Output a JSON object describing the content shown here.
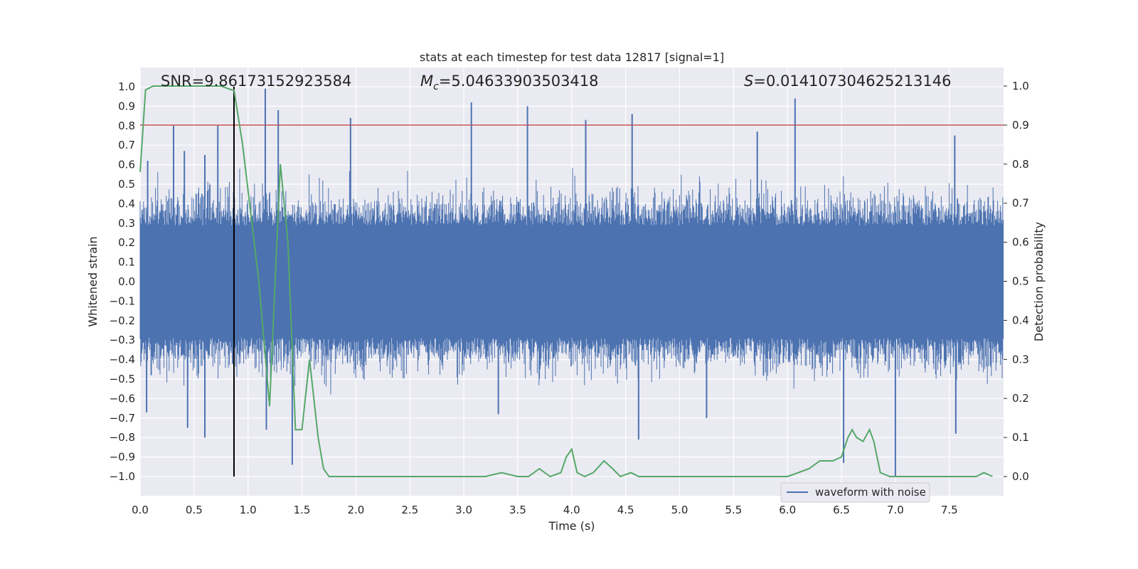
{
  "chart_data": {
    "type": "line",
    "title": "stats at each timestep for test data 12817 [signal=1]",
    "xlabel": "Time (s)",
    "ylabel": "Whitened strain",
    "y2label": "Detection probability",
    "xlim": [
      0.0,
      8.0
    ],
    "ylim": [
      -1.1,
      1.1
    ],
    "y2lim": [
      -0.05,
      1.05
    ],
    "xticks": [
      "0.0",
      "0.5",
      "1.0",
      "1.5",
      "2.0",
      "2.5",
      "3.0",
      "3.5",
      "4.0",
      "4.5",
      "5.0",
      "5.5",
      "6.0",
      "6.5",
      "7.0",
      "7.5"
    ],
    "yticks": [
      "1.0",
      "0.9",
      "0.8",
      "0.7",
      "0.6",
      "0.5",
      "0.4",
      "0.3",
      "0.2",
      "0.1",
      "0.0",
      "−0.1",
      "−0.2",
      "−0.3",
      "−0.4",
      "−0.5",
      "−0.6",
      "−0.7",
      "−0.8",
      "−0.9",
      "−1.0"
    ],
    "y2ticks": [
      "1.0",
      "0.9",
      "0.8",
      "0.7",
      "0.6",
      "0.5",
      "0.4",
      "0.3",
      "0.2",
      "0.1",
      "0.0"
    ],
    "grid": true,
    "legend": {
      "position": "lower-right",
      "entries": [
        {
          "label": "waveform with noise",
          "color": "#4c72b0"
        }
      ]
    },
    "annotations": {
      "snr": "SNR=9.86173152923584",
      "mc_symbol": "M",
      "mc_subscript": "c",
      "mc_value": "=5.04633903503418",
      "s_symbol": "S",
      "s_value": "=0.014107304625213146"
    },
    "series": [
      {
        "name": "waveform with noise",
        "color": "#4c72b0",
        "axis": "left",
        "style": "dense-noise",
        "envelope_typical": 0.4,
        "spikes": [
          {
            "x": 0.07,
            "y": 0.62
          },
          {
            "x": 0.31,
            "y": 0.8
          },
          {
            "x": 0.41,
            "y": 0.67
          },
          {
            "x": 0.6,
            "y": 0.65
          },
          {
            "x": 0.72,
            "y": 0.8
          },
          {
            "x": 1.16,
            "y": 0.99
          },
          {
            "x": 1.28,
            "y": 0.88
          },
          {
            "x": 1.95,
            "y": 0.84
          },
          {
            "x": 3.07,
            "y": 0.92
          },
          {
            "x": 3.59,
            "y": 0.9
          },
          {
            "x": 4.13,
            "y": 0.83
          },
          {
            "x": 4.56,
            "y": 0.86
          },
          {
            "x": 6.07,
            "y": 0.94
          },
          {
            "x": 5.72,
            "y": 0.77
          },
          {
            "x": 7.55,
            "y": 0.75
          },
          {
            "x": 0.06,
            "y": -0.67
          },
          {
            "x": 0.44,
            "y": -0.75
          },
          {
            "x": 0.6,
            "y": -0.8
          },
          {
            "x": 1.17,
            "y": -0.76
          },
          {
            "x": 1.41,
            "y": -0.94
          },
          {
            "x": 4.62,
            "y": -0.81
          },
          {
            "x": 6.52,
            "y": -0.93
          },
          {
            "x": 7.0,
            "y": -1.0
          },
          {
            "x": 7.56,
            "y": -0.78
          },
          {
            "x": 3.32,
            "y": -0.68
          },
          {
            "x": 5.25,
            "y": -0.7
          }
        ]
      },
      {
        "name": "",
        "color": "#55a868",
        "axis": "right",
        "x": [
          0.0,
          0.05,
          0.12,
          0.2,
          0.4,
          0.6,
          0.75,
          0.85,
          0.87,
          0.95,
          1.1,
          1.2,
          1.3,
          1.37,
          1.44,
          1.5,
          1.57,
          1.65,
          1.7,
          1.75,
          1.85,
          2.0,
          2.2,
          2.4,
          2.6,
          2.8,
          3.0,
          3.2,
          3.35,
          3.5,
          3.6,
          3.7,
          3.8,
          3.9,
          3.95,
          4.0,
          4.05,
          4.12,
          4.2,
          4.3,
          4.38,
          4.45,
          4.55,
          4.62,
          4.7,
          4.8,
          5.0,
          5.2,
          5.4,
          5.6,
          5.8,
          6.0,
          6.1,
          6.2,
          6.3,
          6.35,
          6.42,
          6.5,
          6.56,
          6.6,
          6.64,
          6.7,
          6.76,
          6.8,
          6.86,
          6.95,
          7.0,
          7.1,
          7.2,
          7.4,
          7.6,
          7.75,
          7.82,
          7.9
        ],
        "y": [
          0.78,
          0.99,
          1.0,
          1.0,
          1.0,
          1.0,
          1.0,
          0.99,
          0.99,
          0.85,
          0.5,
          0.18,
          0.8,
          0.6,
          0.12,
          0.12,
          0.3,
          0.1,
          0.02,
          0.0,
          0.0,
          0.0,
          0.0,
          0.0,
          0.0,
          0.0,
          0.0,
          0.0,
          0.01,
          0.0,
          0.0,
          0.02,
          0.0,
          0.01,
          0.05,
          0.07,
          0.01,
          0.0,
          0.01,
          0.04,
          0.02,
          0.0,
          0.01,
          0.0,
          0.0,
          0.0,
          0.0,
          0.0,
          0.0,
          0.0,
          0.0,
          0.0,
          0.01,
          0.02,
          0.04,
          0.04,
          0.04,
          0.05,
          0.1,
          0.12,
          0.1,
          0.09,
          0.12,
          0.09,
          0.01,
          0.0,
          0.0,
          0.0,
          0.0,
          0.0,
          0.0,
          0.0,
          0.01,
          0.0
        ]
      }
    ],
    "threshold_line": {
      "y2": 0.9,
      "color": "#c44e52"
    },
    "marker_line": {
      "x": 0.87,
      "y_from": -1.0,
      "y_to": 1.0,
      "color": "#000000"
    }
  }
}
